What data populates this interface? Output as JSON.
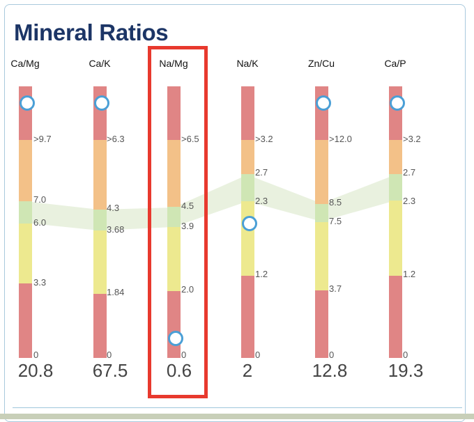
{
  "title": "Mineral Ratios",
  "ratios": [
    {
      "name": "Ca/Mg",
      "value": "20.8",
      "ticks": [
        ">9.7",
        "7.0",
        "6.0",
        "3.3",
        "0"
      ]
    },
    {
      "name": "Ca/K",
      "value": "67.5",
      "ticks": [
        ">6.3",
        "4.3",
        "3.68",
        "1.84",
        "0"
      ]
    },
    {
      "name": "Na/Mg",
      "value": "0.6",
      "ticks": [
        ">6.5",
        "4.5",
        "3.9",
        "2.0",
        "0"
      ]
    },
    {
      "name": "Na/K",
      "value": "2",
      "ticks": [
        ">3.2",
        "2.7",
        "2.3",
        "1.2",
        "0"
      ]
    },
    {
      "name": "Zn/Cu",
      "value": "12.8",
      "ticks": [
        ">12.0",
        "8.5",
        "7.5",
        "3.7",
        "0"
      ]
    },
    {
      "name": "Ca/P",
      "value": "19.3",
      "ticks": [
        ">3.2",
        "2.7",
        "2.3",
        "1.2",
        "0"
      ]
    }
  ],
  "colors": {
    "high": "#e08585",
    "elevated": "#f3c188",
    "ideal": "#cfe6b4",
    "low": "#ede98f",
    "marker": "#4a9fd6",
    "highlight": "#e8392e",
    "title": "#1c3566"
  }
}
